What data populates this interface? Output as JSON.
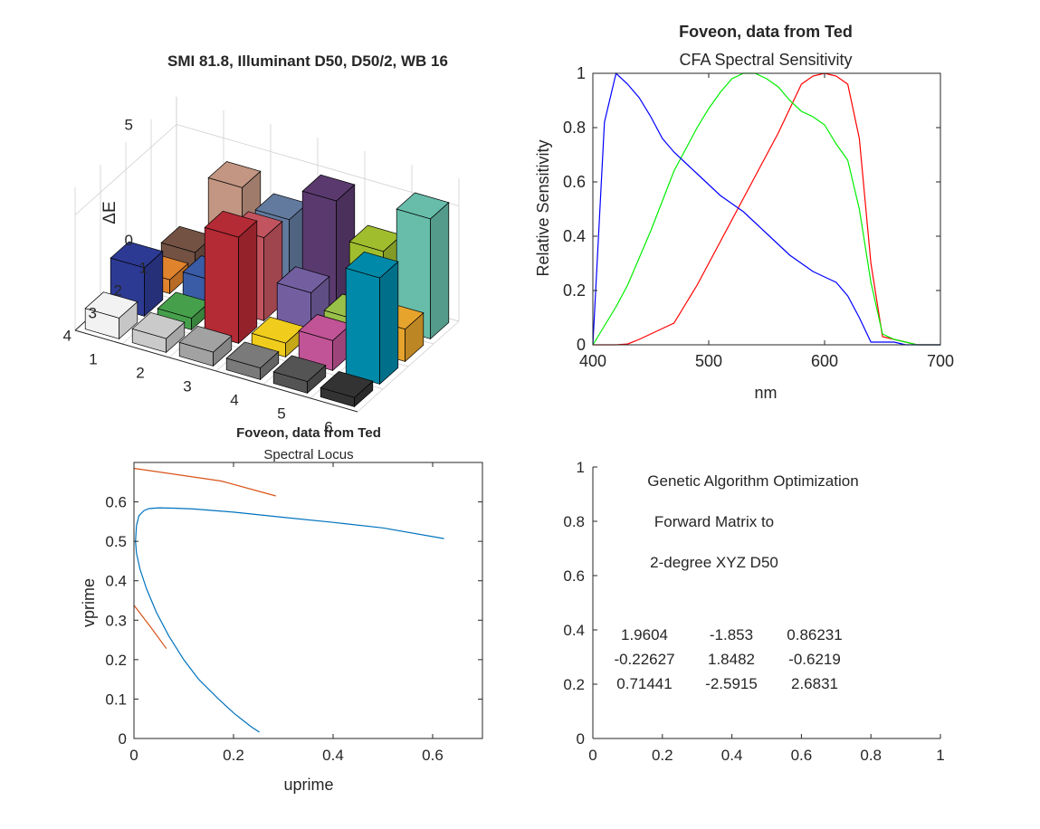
{
  "bar3d": {
    "title": "SMI 81.8, Illuminant D50, D50/2, WB 16",
    "zlabel": "ΔE",
    "zticks": [
      "0",
      "5"
    ],
    "row_ticks": [
      "1",
      "2",
      "3",
      "4"
    ],
    "col_ticks": [
      "1",
      "2",
      "3",
      "4",
      "5",
      "6"
    ],
    "bars": [
      {
        "row": 1,
        "col": 1,
        "value": 0.8,
        "color": "#735244"
      },
      {
        "row": 1,
        "col": 2,
        "value": 4.2,
        "color": "#c29682"
      },
      {
        "row": 1,
        "col": 3,
        "value": 3.4,
        "color": "#627a9d"
      },
      {
        "row": 1,
        "col": 4,
        "value": 4.8,
        "color": "#5a3a6e"
      },
      {
        "row": 1,
        "col": 5,
        "value": 3.2,
        "color": "#a0bd2e"
      },
      {
        "row": 1,
        "col": 6,
        "value": 5.2,
        "color": "#67bdaa"
      },
      {
        "row": 2,
        "col": 1,
        "value": 0.6,
        "color": "#e0832d"
      },
      {
        "row": 2,
        "col": 2,
        "value": 1.1,
        "color": "#3a5ba6"
      },
      {
        "row": 2,
        "col": 3,
        "value": 3.6,
        "color": "#c2545f"
      },
      {
        "row": 2,
        "col": 4,
        "value": 1.8,
        "color": "#735fa0"
      },
      {
        "row": 2,
        "col": 5,
        "value": 1.2,
        "color": "#99c14a"
      },
      {
        "row": 2,
        "col": 6,
        "value": 1.4,
        "color": "#e6a42c"
      },
      {
        "row": 3,
        "col": 1,
        "value": 2.1,
        "color": "#2d3a94"
      },
      {
        "row": 3,
        "col": 2,
        "value": 0.5,
        "color": "#46a04b"
      },
      {
        "row": 3,
        "col": 3,
        "value": 4.6,
        "color": "#b42a35"
      },
      {
        "row": 3,
        "col": 4,
        "value": 0.6,
        "color": "#f0cc1d"
      },
      {
        "row": 3,
        "col": 5,
        "value": 1.3,
        "color": "#c05496"
      },
      {
        "row": 3,
        "col": 6,
        "value": 4.6,
        "color": "#0089a8"
      },
      {
        "row": 4,
        "col": 1,
        "value": 0.9,
        "color": "#f2f2f2"
      },
      {
        "row": 4,
        "col": 2,
        "value": 0.6,
        "color": "#cacaca"
      },
      {
        "row": 4,
        "col": 3,
        "value": 0.6,
        "color": "#a2a2a2"
      },
      {
        "row": 4,
        "col": 4,
        "value": 0.5,
        "color": "#7a7a7a"
      },
      {
        "row": 4,
        "col": 5,
        "value": 0.5,
        "color": "#545454"
      },
      {
        "row": 4,
        "col": 6,
        "value": 0.4,
        "color": "#333333"
      }
    ]
  },
  "chart_data": [
    {
      "type": "bar3d",
      "title": "SMI 81.8, Illuminant D50, D50/2, WB 16",
      "zlabel": "ΔE",
      "rows": [
        1,
        2,
        3,
        4
      ],
      "cols": [
        1,
        2,
        3,
        4,
        5,
        6
      ],
      "values": [
        [
          0.8,
          4.2,
          3.4,
          4.8,
          3.2,
          5.2
        ],
        [
          0.6,
          1.1,
          3.6,
          1.8,
          1.2,
          1.4
        ],
        [
          2.1,
          0.5,
          4.6,
          0.6,
          1.3,
          4.6
        ],
        [
          0.9,
          0.6,
          0.6,
          0.5,
          0.5,
          0.4
        ]
      ],
      "zticks": [
        0,
        5
      ],
      "grid": true
    },
    {
      "type": "line",
      "title": "Foveon, data from Ted",
      "subtitle": "CFA Spectral Sensitivity",
      "xlabel": "nm",
      "ylabel": "Relative Sensitivity",
      "xlim": [
        400,
        700
      ],
      "ylim": [
        0,
        1
      ],
      "xticks": [
        "400",
        "500",
        "600",
        "700"
      ],
      "yticks": [
        "0",
        "0.2",
        "0.4",
        "0.6",
        "0.8",
        "1"
      ],
      "grid": false,
      "series": [
        {
          "color": "#ff0000",
          "x": [
            400,
            410,
            420,
            430,
            440,
            450,
            460,
            470,
            480,
            490,
            500,
            510,
            520,
            530,
            540,
            550,
            560,
            570,
            580,
            590,
            600,
            610,
            620,
            630,
            640,
            650,
            660,
            670,
            680,
            690,
            700
          ],
          "y": [
            0,
            0,
            0,
            0.003,
            0.02,
            0.04,
            0.06,
            0.08,
            0.15,
            0.22,
            0.3,
            0.38,
            0.46,
            0.54,
            0.62,
            0.7,
            0.78,
            0.87,
            0.96,
            0.99,
            1,
            0.99,
            0.96,
            0.76,
            0.3,
            0.03,
            0.02,
            0.01,
            0,
            0,
            0
          ]
        },
        {
          "color": "#00ee00",
          "x": [
            400,
            410,
            420,
            430,
            440,
            450,
            460,
            470,
            480,
            490,
            500,
            510,
            520,
            530,
            540,
            550,
            560,
            570,
            580,
            590,
            600,
            610,
            620,
            630,
            640,
            650,
            660,
            670,
            680,
            690,
            700
          ],
          "y": [
            0,
            0.07,
            0.14,
            0.22,
            0.32,
            0.42,
            0.53,
            0.64,
            0.72,
            0.8,
            0.87,
            0.93,
            0.98,
            1,
            1,
            0.98,
            0.95,
            0.9,
            0.86,
            0.84,
            0.81,
            0.74,
            0.68,
            0.5,
            0.23,
            0.04,
            0.02,
            0.01,
            0,
            0,
            0
          ]
        },
        {
          "color": "#0000ff",
          "x": [
            400,
            410,
            420,
            430,
            440,
            450,
            460,
            470,
            480,
            490,
            500,
            510,
            520,
            530,
            540,
            550,
            560,
            570,
            580,
            590,
            600,
            610,
            620,
            630,
            640,
            650,
            660,
            670,
            680,
            690,
            700
          ],
          "y": [
            0,
            0.82,
            1,
            0.96,
            0.91,
            0.84,
            0.76,
            0.71,
            0.67,
            0.63,
            0.59,
            0.55,
            0.52,
            0.49,
            0.45,
            0.41,
            0.37,
            0.33,
            0.3,
            0.27,
            0.25,
            0.23,
            0.18,
            0.1,
            0.01,
            0.01,
            0.01,
            0,
            0,
            0,
            0
          ]
        }
      ]
    },
    {
      "type": "line",
      "title": "Foveon, data from Ted",
      "subtitle": "Spectral Locus",
      "xlabel": "uprime",
      "ylabel": "vprime",
      "xlim": [
        0,
        0.7
      ],
      "ylim": [
        0,
        0.7
      ],
      "xticks": [
        "0",
        "0.2",
        "0.4",
        "0.6"
      ],
      "yticks": [
        "0",
        "0.1",
        "0.2",
        "0.3",
        "0.4",
        "0.5",
        "0.6"
      ],
      "grid": false,
      "series": [
        {
          "color": "#0072bd",
          "x": [
            0.252,
            0.235,
            0.22,
            0.2,
            0.17,
            0.13,
            0.1,
            0.07,
            0.045,
            0.025,
            0.012,
            0.005,
            0.003,
            0.005,
            0.01,
            0.02,
            0.03,
            0.05,
            0.08,
            0.12,
            0.2,
            0.3,
            0.4,
            0.5,
            0.623
          ],
          "y": [
            0.016,
            0.03,
            0.045,
            0.065,
            0.1,
            0.15,
            0.2,
            0.26,
            0.32,
            0.38,
            0.43,
            0.47,
            0.5,
            0.54,
            0.565,
            0.578,
            0.583,
            0.585,
            0.584,
            0.582,
            0.574,
            0.561,
            0.548,
            0.534,
            0.507
          ]
        },
        {
          "color": "#d95319",
          "x": [
            0.0,
            0.175,
            0.285
          ],
          "y": [
            0.685,
            0.653,
            0.615
          ]
        },
        {
          "color": "#d95319",
          "x": [
            0.0,
            0.035,
            0.065
          ],
          "y": [
            0.338,
            0.28,
            0.228
          ]
        }
      ]
    },
    {
      "type": "table",
      "xlim": [
        0,
        1
      ],
      "ylim": [
        0,
        1
      ],
      "xticks": [
        "0",
        "0.2",
        "0.4",
        "0.6",
        "0.8",
        "1"
      ],
      "yticks": [
        "0",
        "0.2",
        "0.4",
        "0.6",
        "0.8",
        "1"
      ],
      "text_lines": [
        "Genetic Algorithm Optimization",
        "Forward Matrix to",
        "2-degree XYZ D50"
      ],
      "matrix": [
        [
          "1.9604",
          "-1.853",
          "0.86231"
        ],
        [
          "-0.22627",
          "1.8482",
          "-0.6219"
        ],
        [
          "0.71441",
          "-2.5915",
          "2.6831"
        ]
      ]
    }
  ]
}
